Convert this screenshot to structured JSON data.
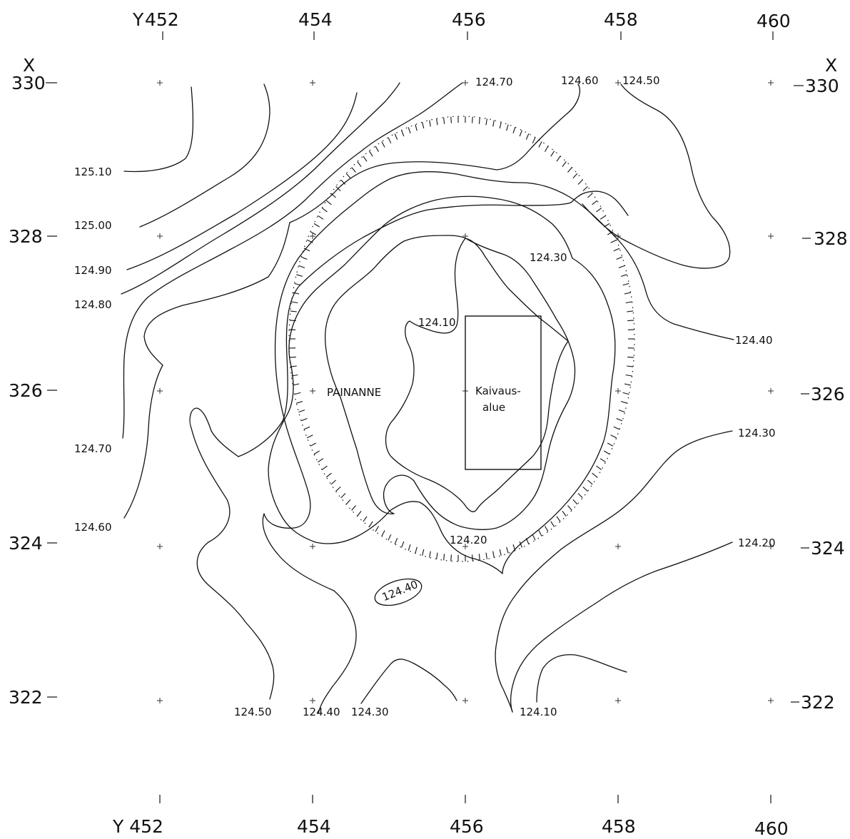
{
  "grid": {
    "y_label_prefix": "Y",
    "x_label": "X",
    "y_ticks": [
      "452",
      "454",
      "456",
      "458",
      "460"
    ],
    "x_ticks": [
      "330",
      "328",
      "326",
      "324",
      "322"
    ],
    "bottom_first_label": "Y 452"
  },
  "contour_labels": [
    {
      "id": "c12510",
      "text": "125.10"
    },
    {
      "id": "c12500",
      "text": "125.00"
    },
    {
      "id": "c12490",
      "text": "124.90"
    },
    {
      "id": "c12480",
      "text": "124.80"
    },
    {
      "id": "c12470a",
      "text": "124.70"
    },
    {
      "id": "c12460a",
      "text": "124.60"
    },
    {
      "id": "c12450a",
      "text": "124.50"
    },
    {
      "id": "c12440a",
      "text": "124.40"
    },
    {
      "id": "c12430a",
      "text": "124.30"
    },
    {
      "id": "c12470b",
      "text": "124.70"
    },
    {
      "id": "c12460b",
      "text": "124.60"
    },
    {
      "id": "c12450b",
      "text": "124.50"
    },
    {
      "id": "c12440b",
      "text": "124.40"
    },
    {
      "id": "c12430b",
      "text": "124.30"
    },
    {
      "id": "c12410a",
      "text": "124.10"
    },
    {
      "id": "c12430c",
      "text": "124.30"
    },
    {
      "id": "c12420a",
      "text": "124.20"
    },
    {
      "id": "c12410b",
      "text": "124.10"
    },
    {
      "id": "c12440c",
      "text": "124.40"
    },
    {
      "id": "c12420b",
      "text": "124.20"
    }
  ],
  "places": {
    "depression": "PAINANNE",
    "excavation_line1": "Kaivaus-",
    "excavation_line2": "alue"
  }
}
